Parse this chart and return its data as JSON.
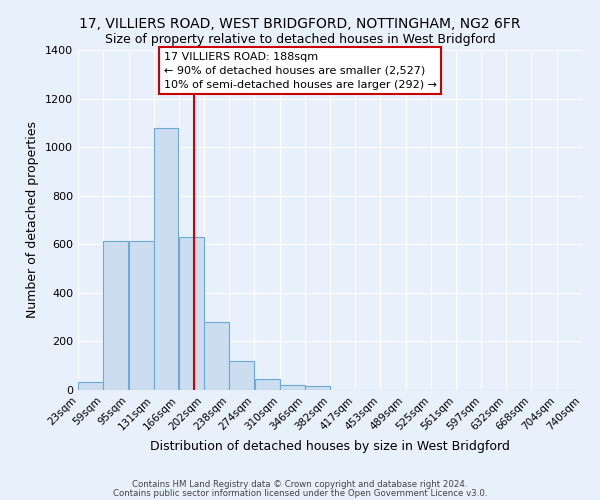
{
  "title": "17, VILLIERS ROAD, WEST BRIDGFORD, NOTTINGHAM, NG2 6FR",
  "subtitle": "Size of property relative to detached houses in West Bridgford",
  "xlabel": "Distribution of detached houses by size in West Bridgford",
  "ylabel": "Number of detached properties",
  "bin_edges": [
    23,
    59,
    95,
    131,
    166,
    202,
    238,
    274,
    310,
    346,
    382,
    417,
    453,
    489,
    525,
    561,
    597,
    632,
    668,
    704,
    740
  ],
  "bin_counts": [
    35,
    612,
    612,
    1080,
    630,
    280,
    120,
    47,
    22,
    15,
    0,
    0,
    0,
    0,
    0,
    0,
    0,
    0,
    0,
    0
  ],
  "bar_facecolor": "#ccddf0",
  "bar_edgecolor": "#6aaad4",
  "vline_x": 188,
  "vline_color": "#cc0000",
  "ylim": [
    0,
    1400
  ],
  "yticks": [
    0,
    200,
    400,
    600,
    800,
    1000,
    1200,
    1400
  ],
  "annotation_box_text": "17 VILLIERS ROAD: 188sqm\n← 90% of detached houses are smaller (2,527)\n10% of semi-detached houses are larger (292) →",
  "footer_line1": "Contains HM Land Registry data © Crown copyright and database right 2024.",
  "footer_line2": "Contains public sector information licensed under the Open Government Licence v3.0.",
  "bg_color": "#e8f0fb",
  "plot_bg_color": "#e8f0fb",
  "grid_color": "#ffffff",
  "title_fontsize": 10,
  "subtitle_fontsize": 9,
  "xlabel_fontsize": 9,
  "ylabel_fontsize": 9,
  "tick_fontsize": 7.5,
  "annotation_fontsize": 8
}
